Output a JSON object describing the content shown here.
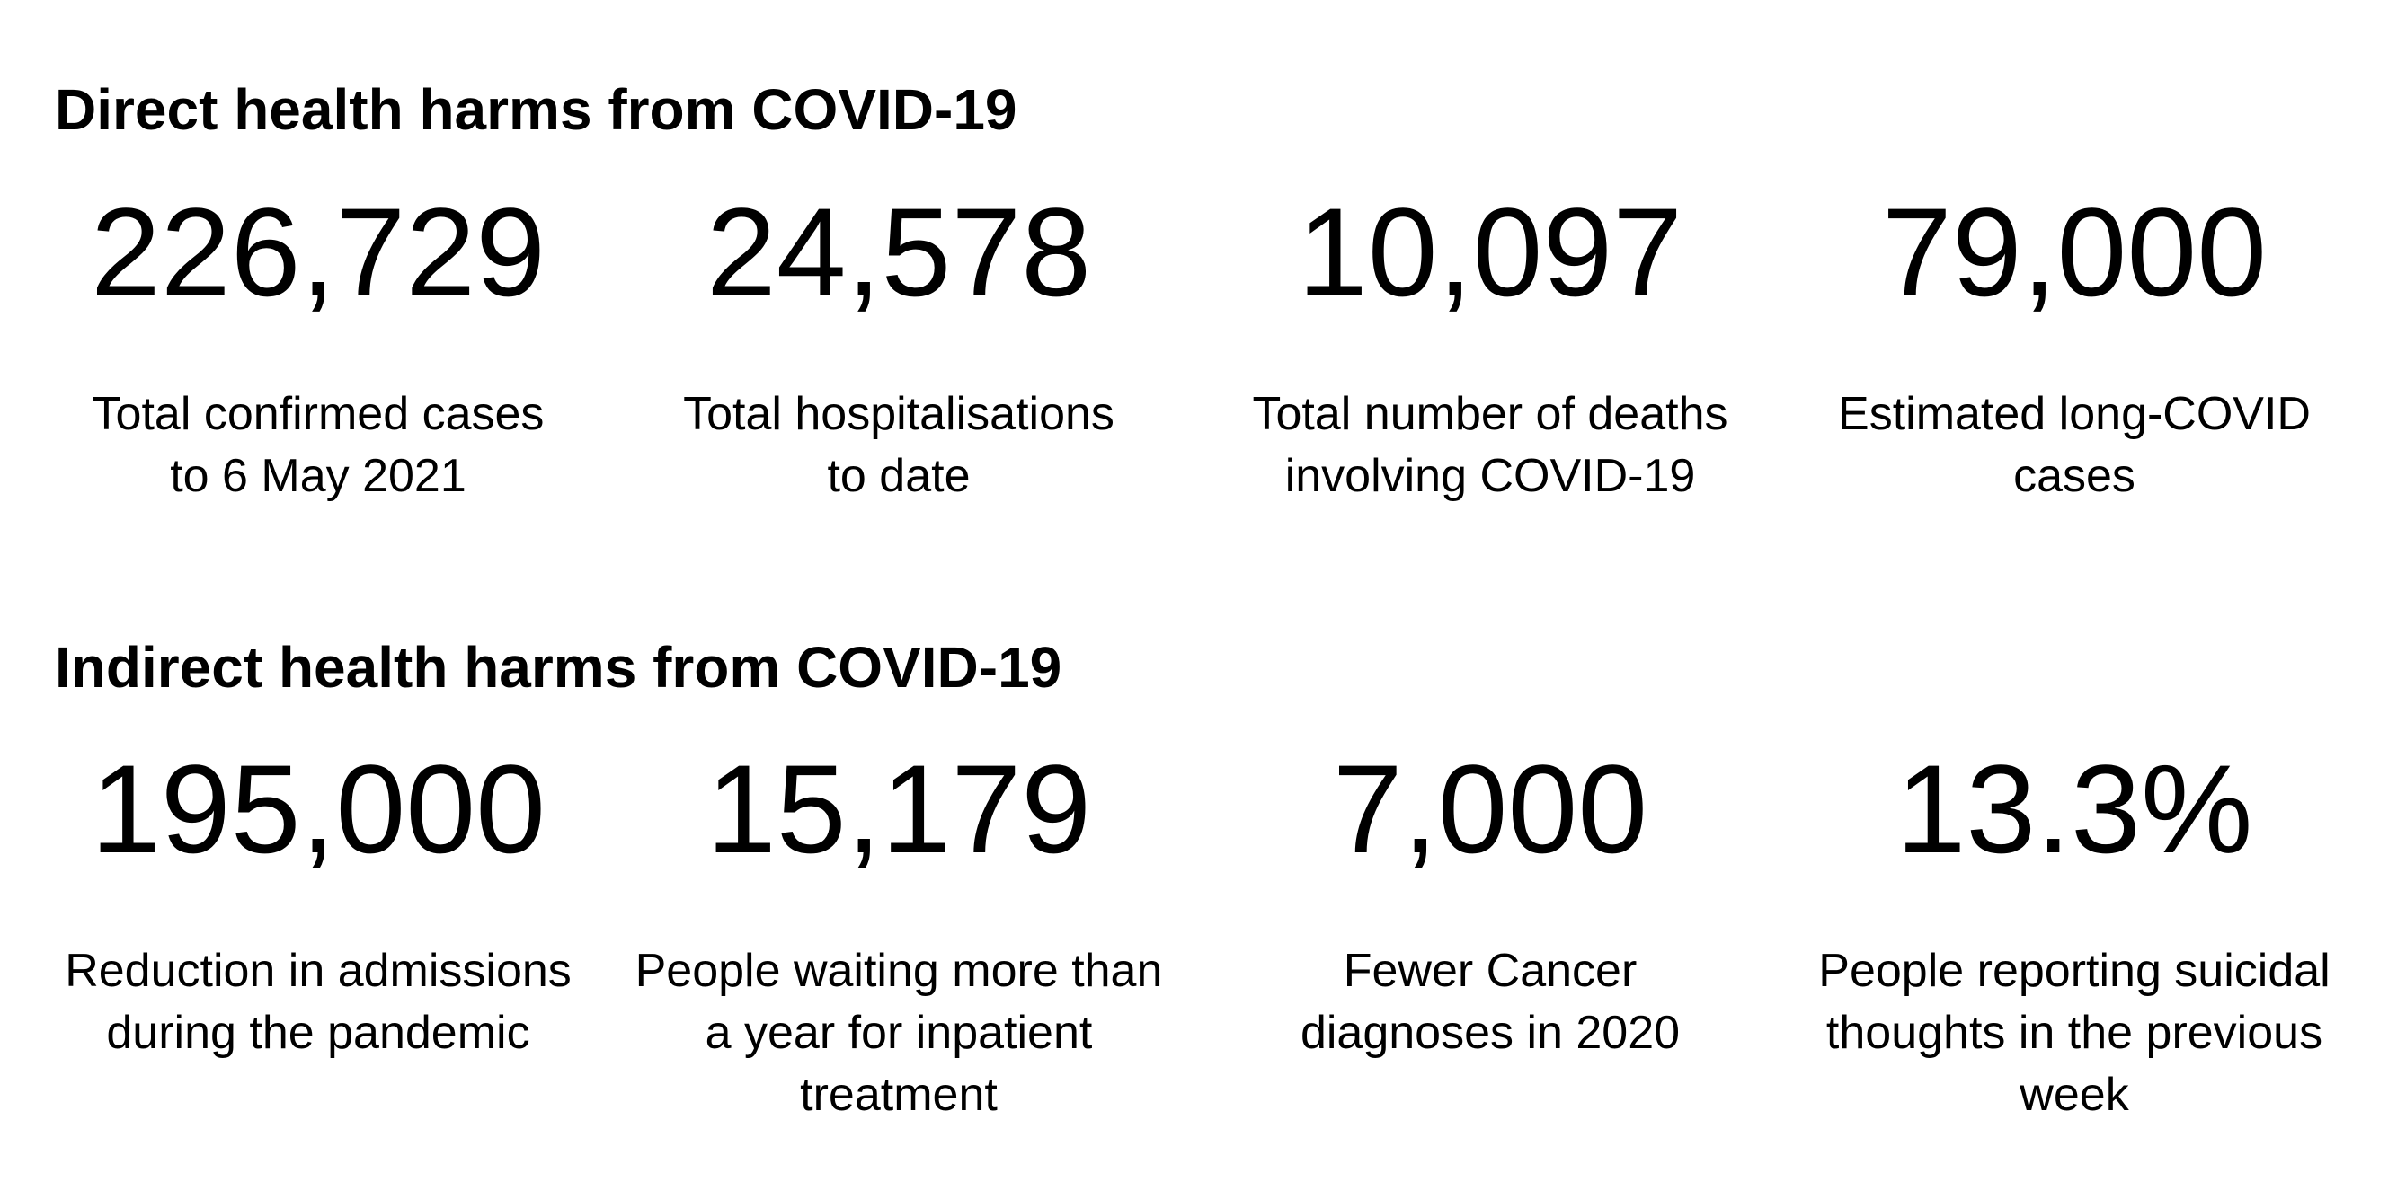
{
  "sections": [
    {
      "title": "Direct health harms from COVID-19",
      "stats": [
        {
          "value": "226,729",
          "label_lines": [
            "Total confirmed cases",
            "to 6 May 2021"
          ]
        },
        {
          "value": "24,578",
          "label_lines": [
            "Total hospitalisations",
            "to date"
          ]
        },
        {
          "value": "10,097",
          "label_lines": [
            "Total number of deaths",
            "involving COVID-19"
          ]
        },
        {
          "value": "79,000",
          "label_lines": [
            "Estimated long-COVID",
            "cases"
          ]
        }
      ]
    },
    {
      "title": "Indirect health harms from COVID-19",
      "stats": [
        {
          "value": "195,000",
          "label_lines": [
            "Reduction in admissions",
            "during the pandemic"
          ]
        },
        {
          "value": "15,179",
          "label_lines": [
            "People waiting more than",
            "a year for inpatient",
            "treatment"
          ]
        },
        {
          "value": "7,000",
          "label_lines": [
            "Fewer Cancer",
            "diagnoses in 2020"
          ]
        },
        {
          "value": "13.3%",
          "label_lines": [
            "People reporting suicidal",
            "thoughts in the previous",
            "week"
          ]
        }
      ]
    }
  ]
}
